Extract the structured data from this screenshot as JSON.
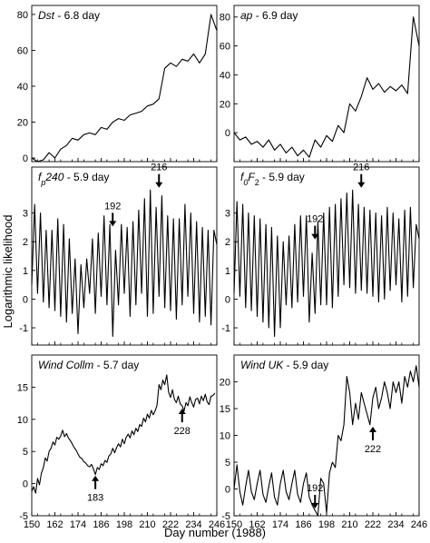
{
  "xlabel": "Day number (1988)",
  "ylabel": "Logarithmic likelihood",
  "chart_data": [
    {
      "id": "dst",
      "type": "line",
      "title_parts": [
        {
          "t": "Dst",
          "i": true
        },
        {
          "t": " - 6.8 day",
          "i": false
        }
      ],
      "x": [
        150,
        153,
        156,
        159,
        162,
        165,
        168,
        171,
        174,
        177,
        180,
        183,
        186,
        189,
        192,
        195,
        198,
        201,
        204,
        207,
        210,
        213,
        216,
        219,
        222,
        225,
        228,
        231,
        234,
        237,
        240,
        243,
        246
      ],
      "y": [
        0,
        -2,
        -1,
        3,
        0,
        5,
        7,
        11,
        10,
        13,
        14,
        13,
        17,
        16,
        20,
        22,
        21,
        24,
        25,
        26,
        29,
        30,
        33,
        50,
        53,
        51,
        55,
        54,
        58,
        53,
        58,
        80,
        71
      ],
      "xlim": [
        150,
        246
      ],
      "ylim": [
        -2,
        85
      ],
      "yticks": [
        0,
        20,
        40,
        60,
        80
      ],
      "xticks": [
        150,
        162,
        174,
        186,
        198,
        210,
        222,
        234,
        246
      ],
      "show_xticklabels": false,
      "arrows": []
    },
    {
      "id": "ap",
      "type": "line",
      "title_parts": [
        {
          "t": "ap",
          "i": true
        },
        {
          "t": " - 6.9 day",
          "i": false
        }
      ],
      "x": [
        150,
        153,
        156,
        159,
        162,
        165,
        168,
        171,
        174,
        177,
        180,
        183,
        186,
        189,
        192,
        195,
        198,
        201,
        204,
        207,
        210,
        213,
        216,
        219,
        222,
        225,
        228,
        231,
        234,
        237,
        240,
        243,
        246
      ],
      "y": [
        0,
        -5,
        -3,
        -8,
        -6,
        -10,
        -5,
        -12,
        -8,
        -14,
        -10,
        -16,
        -12,
        -17,
        -5,
        -10,
        -2,
        -6,
        5,
        0,
        20,
        15,
        25,
        38,
        30,
        34,
        28,
        32,
        29,
        33,
        27,
        80,
        60
      ],
      "xlim": [
        150,
        246
      ],
      "ylim": [
        -20,
        88
      ],
      "yticks": [
        0,
        20,
        40,
        60,
        80
      ],
      "xticks": [
        150,
        162,
        174,
        186,
        198,
        210,
        222,
        234,
        246
      ],
      "show_xticklabels": false,
      "arrows": []
    },
    {
      "id": "fp240",
      "type": "line",
      "title_parts": [
        {
          "t": "f",
          "i": true
        },
        {
          "t": "p",
          "i": true,
          "sub": true
        },
        {
          "t": "240",
          "i": true
        },
        {
          "t": " - 5.9 day",
          "i": false
        }
      ],
      "x": [
        150,
        151.5,
        153,
        154.5,
        156,
        157.5,
        159,
        160.5,
        162,
        163.5,
        165,
        166.5,
        168,
        169.5,
        171,
        172.5,
        174,
        175.5,
        177,
        178.5,
        180,
        181.5,
        183,
        184.5,
        186,
        187.5,
        189,
        190.5,
        192,
        193.5,
        195,
        196.5,
        198,
        199.5,
        201,
        202.5,
        204,
        205.5,
        207,
        208.5,
        210,
        211.5,
        213,
        214.5,
        216,
        217.5,
        219,
        220.5,
        222,
        223.5,
        225,
        226.5,
        228,
        229.5,
        231,
        232.5,
        234,
        235.5,
        237,
        238.5,
        240,
        241.5,
        243,
        244.5,
        246
      ],
      "y": [
        0.5,
        3.3,
        0.2,
        3,
        -0.1,
        2.4,
        -0.3,
        2.4,
        -0.4,
        2.8,
        -0.6,
        2.6,
        -0.8,
        2.1,
        -0.5,
        1.4,
        -1.2,
        1.2,
        -0.3,
        1.4,
        0.2,
        2.1,
        -0.5,
        2.3,
        0.1,
        2.9,
        -0.2,
        2.6,
        -1.3,
        1.7,
        -0.2,
        2.6,
        0.2,
        2.5,
        -0.6,
        2.7,
        -0.2,
        3.1,
        0.2,
        3.5,
        -0.6,
        3.8,
        -0.5,
        3.2,
        0.1,
        3.6,
        -0.3,
        2.9,
        -0.4,
        2.8,
        -0.7,
        2.8,
        -0.2,
        3.3,
        0.1,
        3,
        -0.5,
        2.7,
        -0.8,
        2.5,
        -0.6,
        2.4,
        -0.9,
        2.4,
        1.9
      ],
      "xlim": [
        150,
        246
      ],
      "ylim": [
        -1.6,
        4.6
      ],
      "yticks": [
        -1,
        0,
        1,
        2,
        3
      ],
      "xticks": [
        150,
        162,
        174,
        186,
        198,
        210,
        222,
        234,
        246
      ],
      "show_xticklabels": false,
      "arrows": [
        {
          "label": "192",
          "x": 192,
          "y_tip": 2.5,
          "dir": "down"
        },
        {
          "label": "216",
          "x": 216,
          "y_tip": 3.85,
          "dir": "down"
        }
      ]
    },
    {
      "id": "f0f2",
      "type": "line",
      "title_parts": [
        {
          "t": "f",
          "i": true
        },
        {
          "t": "0",
          "i": true,
          "sub": true
        },
        {
          "t": "F",
          "i": true
        },
        {
          "t": "2",
          "i": false,
          "sub": true
        },
        {
          "t": " - 5.9 day",
          "i": false
        }
      ],
      "x": [
        150,
        151.5,
        153,
        154.5,
        156,
        157.5,
        159,
        160.5,
        162,
        163.5,
        165,
        166.5,
        168,
        169.5,
        171,
        172.5,
        174,
        175.5,
        177,
        178.5,
        180,
        181.5,
        183,
        184.5,
        186,
        187.5,
        189,
        190.5,
        192,
        193.5,
        195,
        196.5,
        198,
        199.5,
        201,
        202.5,
        204,
        205.5,
        207,
        208.5,
        210,
        211.5,
        213,
        214.5,
        216,
        217.5,
        219,
        220.5,
        222,
        223.5,
        225,
        226.5,
        228,
        229.5,
        231,
        232.5,
        234,
        235.5,
        237,
        238.5,
        240,
        241.5,
        243,
        244.5,
        246
      ],
      "y": [
        0.2,
        3.4,
        0.1,
        3.3,
        -0.3,
        3,
        -0.4,
        2.9,
        -0.6,
        2.8,
        -0.8,
        2.6,
        -1,
        2.5,
        -1.3,
        2.2,
        -1,
        2,
        -0.2,
        2.2,
        -0.3,
        2.6,
        -0.1,
        2.9,
        0.1,
        2.9,
        -0.8,
        1.6,
        -0.5,
        2.7,
        -0.2,
        3,
        -0.2,
        3.2,
        -0.3,
        3.3,
        0.1,
        3.5,
        0.5,
        3.7,
        0.4,
        3.8,
        0.2,
        3.3,
        0.3,
        3.2,
        0.2,
        3.1,
        0.1,
        3,
        -0.1,
        2.9,
        0,
        3.2,
        0.3,
        3,
        0.5,
        2.8,
        -0.1,
        3.1,
        0.1,
        3.2,
        0.4,
        2.6,
        2.1
      ],
      "xlim": [
        150,
        246
      ],
      "ylim": [
        -1.6,
        4.6
      ],
      "yticks": [
        -1,
        0,
        1,
        2,
        3
      ],
      "xticks": [
        150,
        162,
        174,
        186,
        198,
        210,
        222,
        234,
        246
      ],
      "show_xticklabels": false,
      "arrows": [
        {
          "label": "192",
          "x": 192,
          "y_tip": 2.05,
          "dir": "down"
        },
        {
          "label": "216",
          "x": 216,
          "y_tip": 3.85,
          "dir": "down"
        }
      ]
    },
    {
      "id": "windcollm",
      "type": "line",
      "title_parts": [
        {
          "t": "Wind Collm",
          "i": true
        },
        {
          "t": " - 5.7 day",
          "i": false
        }
      ],
      "x": [
        150,
        151,
        152,
        153,
        154,
        155,
        156,
        157,
        158,
        159,
        160,
        161,
        162,
        163,
        164,
        165,
        166,
        167,
        168,
        169,
        170,
        171,
        172,
        173,
        174,
        175,
        176,
        177,
        178,
        179,
        180,
        181,
        182,
        183,
        184,
        185,
        186,
        187,
        188,
        189,
        190,
        191,
        192,
        193,
        194,
        195,
        196,
        197,
        198,
        199,
        200,
        201,
        202,
        203,
        204,
        205,
        206,
        207,
        208,
        209,
        210,
        211,
        212,
        213,
        214,
        215,
        216,
        217,
        218,
        219,
        220,
        221,
        222,
        223,
        224,
        225,
        226,
        227,
        228,
        229,
        230,
        231,
        232,
        233,
        234,
        235,
        236,
        237,
        238,
        239,
        240,
        241,
        242,
        243,
        244,
        245
      ],
      "y": [
        -1.2,
        -0.5,
        -1.5,
        0.8,
        -0.2,
        1.6,
        2.5,
        4,
        3.5,
        5,
        5.5,
        6.5,
        6,
        7.2,
        6.9,
        7.4,
        8.3,
        7.3,
        7.8,
        7.1,
        6.7,
        6.2,
        5.6,
        5.2,
        4.6,
        4.1,
        3.9,
        3.4,
        3.2,
        2.8,
        2.6,
        3,
        2.3,
        1.4,
        2.5,
        2.2,
        3.1,
        2.8,
        3.6,
        3.3,
        4.3,
        4.6,
        5.5,
        4.8,
        5.6,
        6.2,
        5.7,
        6.9,
        6.2,
        7.2,
        7.7,
        7.1,
        8.2,
        7.6,
        8.6,
        8.1,
        9.2,
        8.9,
        10.2,
        9.6,
        10.8,
        10.2,
        11.4,
        10.7,
        11.3,
        12.2,
        15.4,
        14.6,
        16.1,
        15.4,
        16.9,
        14.2,
        13.4,
        14.6,
        13.1,
        12.6,
        13.6,
        12.4,
        12.1,
        11.3,
        12.6,
        12.1,
        13.5,
        12.6,
        11.9,
        13.1,
        13.3,
        12.4,
        13.6,
        12.9,
        13.9,
        12.7,
        12.3,
        13.6,
        13.7,
        14.1
      ],
      "xlim": [
        150,
        246
      ],
      "ylim": [
        -5,
        20
      ],
      "yticks": [
        -5,
        0,
        5,
        10,
        15
      ],
      "xticks": [
        150,
        162,
        174,
        186,
        198,
        210,
        222,
        234,
        246
      ],
      "show_xticklabels": true,
      "arrows": [
        {
          "label": "183",
          "x": 183,
          "y_tip": 1.4,
          "dir": "up"
        },
        {
          "label": "228",
          "x": 228,
          "y_tip": 11.8,
          "dir": "up"
        }
      ]
    },
    {
      "id": "winduk",
      "type": "line",
      "title_parts": [
        {
          "t": "Wind UK",
          "i": true
        },
        {
          "t": " - 5.9 day",
          "i": false
        }
      ],
      "x": [
        150,
        151.5,
        153,
        154.5,
        156,
        157.5,
        159,
        160.5,
        162,
        163.5,
        165,
        166.5,
        168,
        169.5,
        171,
        172.5,
        174,
        175.5,
        177,
        178.5,
        180,
        181.5,
        183,
        184.5,
        186,
        187.5,
        189,
        190.5,
        192,
        193.5,
        195,
        196.5,
        198,
        199.5,
        201,
        202.5,
        204,
        205.5,
        207,
        208.5,
        210,
        211.5,
        213,
        214.5,
        216,
        217.5,
        219,
        220.5,
        222,
        223.5,
        225,
        226.5,
        228,
        229.5,
        231,
        232.5,
        234,
        235.5,
        237,
        238.5,
        240,
        241.5,
        243,
        244.5,
        246
      ],
      "y": [
        0,
        4.5,
        -0.5,
        -3,
        0.5,
        3.5,
        -0.5,
        -2,
        1,
        3.5,
        -1,
        -2.5,
        0.5,
        3,
        -1.5,
        -3,
        1,
        3.5,
        -0.5,
        -2,
        1,
        3.5,
        -1,
        -2.5,
        1,
        3,
        -1.5,
        -3,
        -4,
        -5,
        2,
        1,
        -4.5,
        3,
        5,
        4,
        10,
        9,
        12,
        21,
        18,
        12,
        16,
        13,
        18,
        16,
        14,
        12,
        17,
        19,
        15,
        17,
        20,
        18,
        15,
        20,
        18,
        20,
        16,
        21,
        19,
        22,
        20,
        23,
        19
      ],
      "xlim": [
        150,
        246
      ],
      "ylim": [
        -5,
        25
      ],
      "yticks": [
        -5,
        0,
        5,
        10,
        15,
        20
      ],
      "xticks": [
        150,
        162,
        174,
        186,
        198,
        210,
        222,
        234,
        246
      ],
      "show_xticklabels": true,
      "arrows": [
        {
          "label": "192",
          "x": 192,
          "y_tip": -3.8,
          "dir": "down"
        },
        {
          "label": "222",
          "x": 222,
          "y_tip": 11.8,
          "dir": "up"
        }
      ]
    }
  ]
}
